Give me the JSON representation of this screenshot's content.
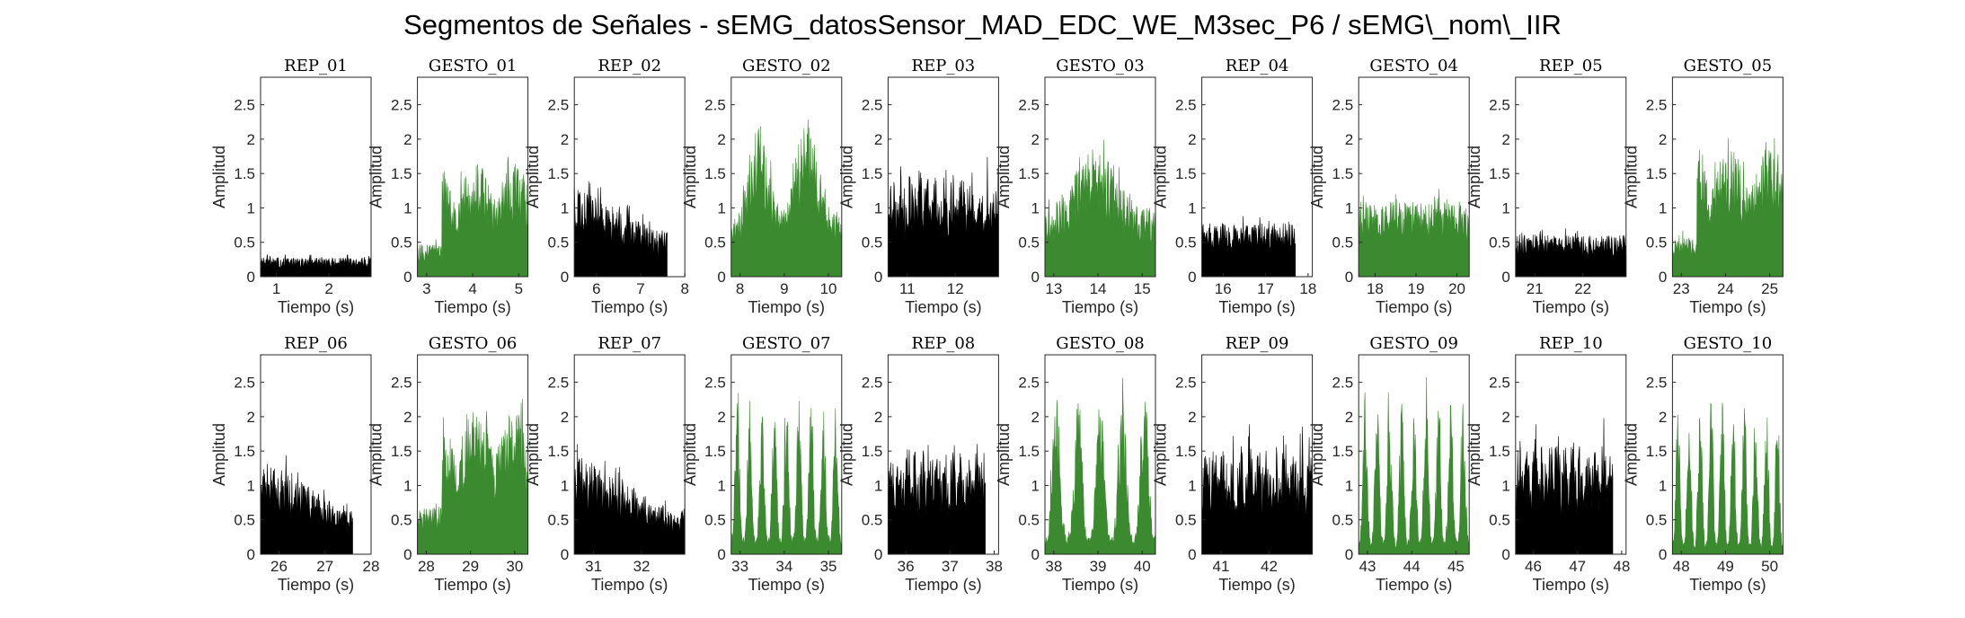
{
  "figure": {
    "title": "Segmentos de Señales - sEMG_datosSensor_MAD_EDC_WE_M3sec_P6 / sEMG\\_nom\\_IIR",
    "colors": {
      "rep": "#000000",
      "gesto": "#3b8a2f",
      "axis": "#262626"
    }
  },
  "chart_data": [
    {
      "type": "area",
      "title": "REP_01",
      "class": "rep",
      "xlabel": "Tiempo (s)",
      "ylabel": "Amplitud",
      "xlim": [
        0.7,
        2.8
      ],
      "ylim": [
        0,
        2.9
      ],
      "xticks": [
        1,
        2
      ],
      "yticks": [
        0,
        0.5,
        1,
        1.5,
        2,
        2.5
      ],
      "segment": [
        0.7,
        2.8
      ],
      "base": 0.18,
      "peak": 0.42,
      "pattern": "noise"
    },
    {
      "type": "area",
      "title": "GESTO_01",
      "class": "gesto",
      "xlabel": "Tiempo (s)",
      "ylabel": "Amplitud",
      "xlim": [
        2.8,
        5.2
      ],
      "ylim": [
        0,
        2.9
      ],
      "xticks": [
        3,
        4,
        5
      ],
      "yticks": [
        0,
        0.5,
        1,
        1.5,
        2,
        2.5
      ],
      "segment": [
        2.8,
        5.2
      ],
      "base": 0.3,
      "peak": 2.0,
      "pattern": "rise"
    },
    {
      "type": "area",
      "title": "REP_02",
      "class": "rep",
      "xlabel": "Tiempo (s)",
      "ylabel": "Amplitud",
      "xlim": [
        5.5,
        8.0
      ],
      "ylim": [
        0,
        2.9
      ],
      "xticks": [
        6,
        7,
        8
      ],
      "yticks": [
        0,
        0.5,
        1,
        1.5,
        2,
        2.5
      ],
      "segment": [
        5.5,
        7.6
      ],
      "base": 0.6,
      "peak": 1.55,
      "pattern": "decay"
    },
    {
      "type": "area",
      "title": "GESTO_02",
      "class": "gesto",
      "xlabel": "Tiempo (s)",
      "ylabel": "Amplitud",
      "xlim": [
        7.8,
        10.3
      ],
      "ylim": [
        0,
        2.9
      ],
      "xticks": [
        8,
        9,
        10
      ],
      "yticks": [
        0,
        0.5,
        1,
        1.5,
        2,
        2.5
      ],
      "segment": [
        7.8,
        10.3
      ],
      "base": 0.5,
      "peak": 2.6,
      "pattern": "humps2"
    },
    {
      "type": "area",
      "title": "REP_03",
      "class": "rep",
      "xlabel": "Tiempo (s)",
      "ylabel": "Amplitud",
      "xlim": [
        10.6,
        12.9
      ],
      "ylim": [
        0,
        2.9
      ],
      "xticks": [
        11,
        12
      ],
      "yticks": [
        0,
        0.5,
        1,
        1.5,
        2,
        2.5
      ],
      "segment": [
        10.6,
        12.9
      ],
      "base": 0.75,
      "peak": 1.75,
      "pattern": "bursts"
    },
    {
      "type": "area",
      "title": "GESTO_03",
      "class": "gesto",
      "xlabel": "Tiempo (s)",
      "ylabel": "Amplitud",
      "xlim": [
        12.8,
        15.3
      ],
      "ylim": [
        0,
        2.9
      ],
      "xticks": [
        13,
        14,
        15
      ],
      "yticks": [
        0,
        0.5,
        1,
        1.5,
        2,
        2.5
      ],
      "segment": [
        12.8,
        15.3
      ],
      "base": 0.6,
      "peak": 2.2,
      "pattern": "hump"
    },
    {
      "type": "area",
      "title": "REP_04",
      "class": "rep",
      "xlabel": "Tiempo (s)",
      "ylabel": "Amplitud",
      "xlim": [
        15.5,
        18.1
      ],
      "ylim": [
        0,
        2.9
      ],
      "xticks": [
        16,
        17,
        18
      ],
      "yticks": [
        0,
        0.5,
        1,
        1.5,
        2,
        2.5
      ],
      "segment": [
        15.5,
        17.7
      ],
      "base": 0.5,
      "peak": 1.2,
      "pattern": "noise"
    },
    {
      "type": "area",
      "title": "GESTO_04",
      "class": "gesto",
      "xlabel": "Tiempo (s)",
      "ylabel": "Amplitud",
      "xlim": [
        17.6,
        20.3
      ],
      "ylim": [
        0,
        2.9
      ],
      "xticks": [
        18,
        19,
        20
      ],
      "yticks": [
        0,
        0.5,
        1,
        1.5,
        2,
        2.5
      ],
      "segment": [
        17.6,
        20.3
      ],
      "base": 0.5,
      "peak": 1.8,
      "pattern": "noise"
    },
    {
      "type": "area",
      "title": "REP_05",
      "class": "rep",
      "xlabel": "Tiempo (s)",
      "ylabel": "Amplitud",
      "xlim": [
        20.6,
        22.9
      ],
      "ylim": [
        0,
        2.9
      ],
      "xticks": [
        21,
        22
      ],
      "yticks": [
        0,
        0.5,
        1,
        1.5,
        2,
        2.5
      ],
      "segment": [
        20.6,
        22.9
      ],
      "base": 0.45,
      "peak": 0.9,
      "pattern": "noise"
    },
    {
      "type": "area",
      "title": "GESTO_05",
      "class": "gesto",
      "xlabel": "Tiempo (s)",
      "ylabel": "Amplitud",
      "xlim": [
        22.8,
        25.3
      ],
      "ylim": [
        0,
        2.9
      ],
      "xticks": [
        23,
        24,
        25
      ],
      "yticks": [
        0,
        0.5,
        1,
        1.5,
        2,
        2.5
      ],
      "segment": [
        22.8,
        25.3
      ],
      "base": 0.4,
      "peak": 2.25,
      "pattern": "rise"
    },
    {
      "type": "area",
      "title": "REP_06",
      "class": "rep",
      "xlabel": "Tiempo (s)",
      "ylabel": "Amplitud",
      "xlim": [
        25.6,
        28.0
      ],
      "ylim": [
        0,
        2.9
      ],
      "xticks": [
        26,
        27,
        28
      ],
      "yticks": [
        0,
        0.5,
        1,
        1.5,
        2,
        2.5
      ],
      "segment": [
        25.6,
        27.6
      ],
      "base": 0.5,
      "peak": 1.75,
      "pattern": "decay"
    },
    {
      "type": "area",
      "title": "GESTO_06",
      "class": "gesto",
      "xlabel": "Tiempo (s)",
      "ylabel": "Amplitud",
      "xlim": [
        27.8,
        30.3
      ],
      "ylim": [
        0,
        2.9
      ],
      "xticks": [
        28,
        29,
        30
      ],
      "yticks": [
        0,
        0.5,
        1,
        1.5,
        2,
        2.5
      ],
      "segment": [
        27.8,
        30.3
      ],
      "base": 0.5,
      "peak": 2.5,
      "pattern": "rise"
    },
    {
      "type": "area",
      "title": "REP_07",
      "class": "rep",
      "xlabel": "Tiempo (s)",
      "ylabel": "Amplitud",
      "xlim": [
        30.6,
        32.9
      ],
      "ylim": [
        0,
        2.9
      ],
      "xticks": [
        31,
        32
      ],
      "yticks": [
        0,
        0.5,
        1,
        1.5,
        2,
        2.5
      ],
      "segment": [
        30.6,
        32.9
      ],
      "base": 0.5,
      "peak": 1.75,
      "pattern": "decay"
    },
    {
      "type": "area",
      "title": "GESTO_07",
      "class": "gesto",
      "xlabel": "Tiempo (s)",
      "ylabel": "Amplitud",
      "xlim": [
        32.8,
        35.3
      ],
      "ylim": [
        0,
        2.9
      ],
      "xticks": [
        33,
        34,
        35
      ],
      "yticks": [
        0,
        0.5,
        1,
        1.5,
        2,
        2.5
      ],
      "segment": [
        32.8,
        35.3
      ],
      "base": 0.3,
      "peak": 2.7,
      "pattern": "spikes9"
    },
    {
      "type": "area",
      "title": "REP_08",
      "class": "rep",
      "xlabel": "Tiempo (s)",
      "ylabel": "Amplitud",
      "xlim": [
        35.6,
        38.1
      ],
      "ylim": [
        0,
        2.9
      ],
      "xticks": [
        36,
        37,
        38
      ],
      "yticks": [
        0,
        0.5,
        1,
        1.5,
        2,
        2.5
      ],
      "segment": [
        35.6,
        37.8
      ],
      "base": 0.8,
      "peak": 1.8,
      "pattern": "bursts"
    },
    {
      "type": "area",
      "title": "GESTO_08",
      "class": "gesto",
      "xlabel": "Tiempo (s)",
      "ylabel": "Amplitud",
      "xlim": [
        37.8,
        40.3
      ],
      "ylim": [
        0,
        2.9
      ],
      "xticks": [
        38,
        39,
        40
      ],
      "yticks": [
        0,
        0.5,
        1,
        1.5,
        2,
        2.5
      ],
      "segment": [
        37.8,
        40.3
      ],
      "base": 0.3,
      "peak": 2.75,
      "pattern": "spikes5"
    },
    {
      "type": "area",
      "title": "REP_09",
      "class": "rep",
      "xlabel": "Tiempo (s)",
      "ylabel": "Amplitud",
      "xlim": [
        40.6,
        42.9
      ],
      "ylim": [
        0,
        2.9
      ],
      "xticks": [
        41,
        42
      ],
      "yticks": [
        0,
        0.5,
        1,
        1.5,
        2,
        2.5
      ],
      "segment": [
        40.6,
        42.9
      ],
      "base": 0.7,
      "peak": 1.9,
      "pattern": "bursts"
    },
    {
      "type": "area",
      "title": "GESTO_09",
      "class": "gesto",
      "xlabel": "Tiempo (s)",
      "ylabel": "Amplitud",
      "xlim": [
        42.8,
        45.3
      ],
      "ylim": [
        0,
        2.9
      ],
      "xticks": [
        43,
        44,
        45
      ],
      "yticks": [
        0,
        0.5,
        1,
        1.5,
        2,
        2.5
      ],
      "segment": [
        42.8,
        45.3
      ],
      "base": 0.25,
      "peak": 2.6,
      "pattern": "spikes9"
    },
    {
      "type": "area",
      "title": "REP_10",
      "class": "rep",
      "xlabel": "Tiempo (s)",
      "ylabel": "Amplitud",
      "xlim": [
        45.6,
        48.1
      ],
      "ylim": [
        0,
        2.9
      ],
      "xticks": [
        46,
        47,
        48
      ],
      "yticks": [
        0,
        0.5,
        1,
        1.5,
        2,
        2.5
      ],
      "segment": [
        45.6,
        47.8
      ],
      "base": 0.8,
      "peak": 2.0,
      "pattern": "bursts"
    },
    {
      "type": "area",
      "title": "GESTO_10",
      "class": "gesto",
      "xlabel": "Tiempo (s)",
      "ylabel": "Amplitud",
      "xlim": [
        47.8,
        50.3
      ],
      "ylim": [
        0,
        2.9
      ],
      "xticks": [
        48,
        49,
        50
      ],
      "yticks": [
        0,
        0.5,
        1,
        1.5,
        2,
        2.5
      ],
      "segment": [
        47.8,
        50.3
      ],
      "base": 0.2,
      "peak": 2.7,
      "pattern": "spikes10"
    }
  ]
}
